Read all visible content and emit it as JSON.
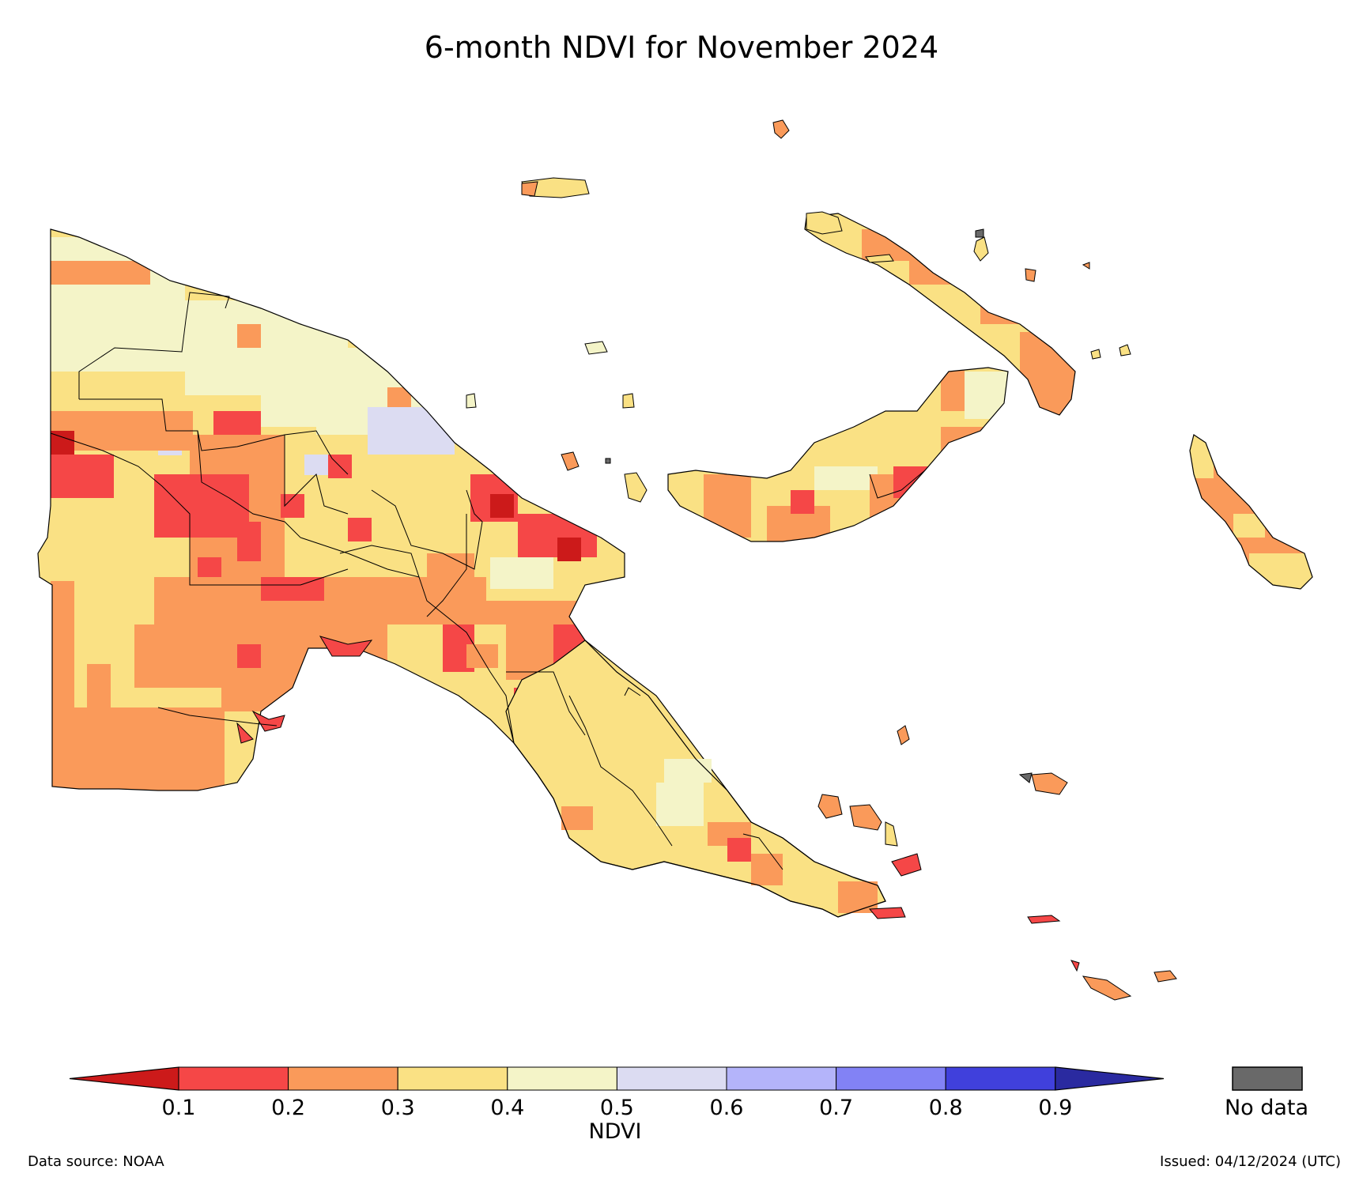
{
  "title": "6-month NDVI for November 2024",
  "colorbar": {
    "label": "NDVI",
    "ticks": [
      "0.1",
      "0.2",
      "0.3",
      "0.4",
      "0.5",
      "0.6",
      "0.7",
      "0.8",
      "0.9"
    ],
    "colors": [
      "#cc1a1a",
      "#f54747",
      "#fa9a5a",
      "#fae184",
      "#f4f4c8",
      "#dcdcf2",
      "#b4b4fa",
      "#8282f5",
      "#4040dc",
      "#2a2aa0"
    ],
    "nodata_color": "#696969",
    "nodata_label": "No data"
  },
  "footer": {
    "source": "Data source: NOAA",
    "issued": "Issued: 04/12/2024 (UTC)"
  },
  "map_legend_classes": {
    "below_0_1": "#cc1a1a",
    "0_1_to_0_2": "#f54747",
    "0_2_to_0_3": "#fa9a5a",
    "0_3_to_0_4": "#fae184",
    "0_4_to_0_5": "#f4f4c8",
    "0_5_to_0_6": "#dcdcf2"
  }
}
